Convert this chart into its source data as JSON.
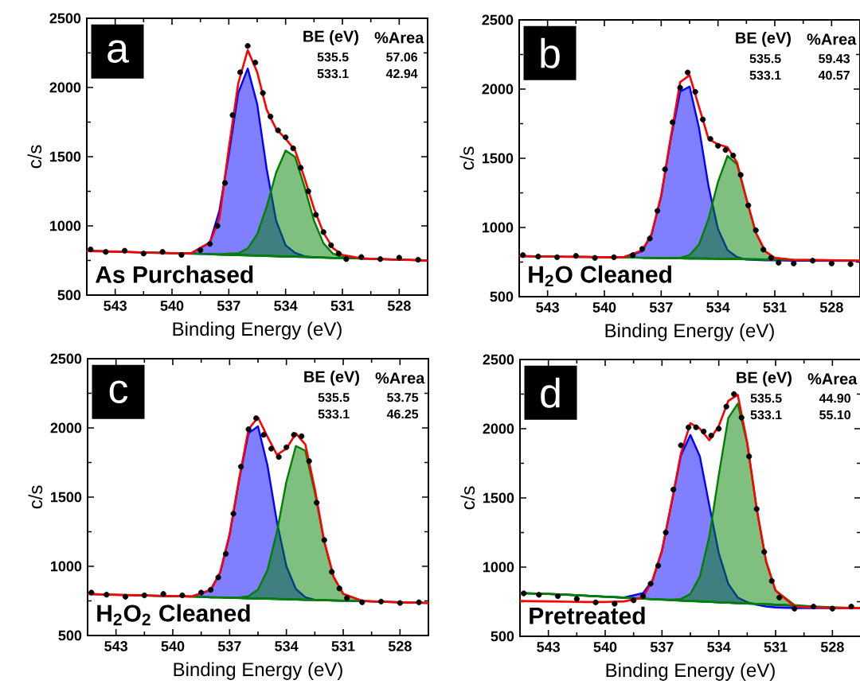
{
  "chart_data": [
    {
      "type": "line",
      "xlabel": "Binding Energy (eV)",
      "ylabel": "c/s",
      "xlim": [
        544.5,
        526.5
      ],
      "xticks": [
        543,
        540,
        537,
        534,
        531,
        528
      ],
      "ylim": [
        500,
        2500
      ],
      "yticks": [
        500,
        1000,
        1500,
        2000,
        2500
      ],
      "x": [
        544.5,
        543,
        542,
        541,
        540,
        539,
        538,
        537.5,
        537,
        536.5,
        536,
        535.5,
        535,
        534.5,
        534,
        533.5,
        533,
        532.5,
        532,
        531.5,
        531,
        530,
        529,
        528,
        527,
        526.5
      ],
      "annotations": [
        "a",
        "BE (eV)",
        "%Area",
        "535.5",
        "57.06",
        "533.1",
        "42.94",
        "As Purchased"
      ],
      "series": [
        {
          "type": "area",
          "color": "#0000ff",
          "values": [
            820,
            814,
            810,
            806,
            803,
            802,
            880,
            1108,
            1514,
            1962,
            2137,
            1880,
            1412,
            1037,
            860,
            805,
            781,
            773,
            771,
            769,
            768,
            764,
            760,
            756,
            752,
            750
          ]
        },
        {
          "type": "area",
          "color": "#008000",
          "values": [
            820,
            814,
            810,
            806,
            803,
            799,
            795,
            794,
            800,
            801,
            837,
            940,
            1138,
            1385,
            1544,
            1498,
            1282,
            1037,
            874,
            799,
            776,
            764,
            760,
            756,
            752,
            750
          ]
        },
        {
          "type": "scatter",
          "color": "#000000",
          "marker": "circle",
          "x": [
            544.3,
            543.5,
            542.5,
            541.5,
            540.5,
            539.5,
            538.5,
            538.0,
            537.6,
            537.2,
            536.8,
            536.4,
            536.0,
            535.6,
            535.2,
            534.8,
            534.4,
            534.0,
            533.6,
            533.2,
            532.8,
            532.4,
            532.0,
            531.6,
            531.2,
            530.8,
            530.0,
            529.0,
            528.0,
            527.0
          ],
          "values": [
            830,
            812,
            820,
            800,
            812,
            790,
            825,
            870,
            1000,
            1310,
            1800,
            2110,
            2300,
            2180,
            1960,
            1790,
            1690,
            1640,
            1560,
            1420,
            1250,
            1080,
            955,
            860,
            800,
            760,
            775,
            760,
            770,
            755
          ]
        },
        {
          "color": "#008000",
          "values": [
            null,
            null,
            null,
            null,
            null,
            null,
            795,
            793,
            791,
            789,
            787,
            785,
            783,
            781,
            779,
            777,
            776,
            773,
            771,
            769,
            768,
            null,
            null,
            null,
            null,
            null
          ]
        },
        {
          "color": "#ff0000",
          "values": [
            818,
            814,
            810,
            806,
            803,
            801,
            880,
            1050,
            1560,
            2030,
            2270,
            2110,
            1840,
            1700,
            1630,
            1545,
            1345,
            1125,
            950,
            840,
            790,
            765,
            760,
            756,
            752,
            749
          ]
        }
      ]
    },
    {
      "type": "line",
      "xlabel": "Binding Energy (eV)",
      "ylabel": "c/s",
      "xlim": [
        544.5,
        526.5
      ],
      "xticks": [
        543,
        540,
        537,
        534,
        531,
        528
      ],
      "ylim": [
        500,
        2500
      ],
      "yticks": [
        500,
        1000,
        1500,
        2000,
        2500
      ],
      "x": [
        544.5,
        543,
        542,
        541,
        540,
        539,
        538,
        537.5,
        537,
        536.5,
        536,
        535.5,
        535,
        534.5,
        534,
        533.5,
        533,
        532.5,
        532,
        531.5,
        531,
        530,
        529,
        528,
        527,
        526.5
      ],
      "annotations": [
        "b",
        "BE (eV)",
        "%Area",
        "535.5",
        "59.43",
        "533.1",
        "40.57",
        "H$_{2}$O Cleaned"
      ],
      "series": [
        {
          "type": "area",
          "color": "#0000ff",
          "values": [
            793,
            790,
            788,
            787,
            785,
            785,
            829,
            952,
            1227,
            1636,
            1981,
            2018,
            1717,
            1298,
            988,
            837,
            786,
            768,
            765,
            763,
            762,
            760,
            760,
            759,
            758,
            757
          ]
        },
        {
          "type": "area",
          "color": "#008000",
          "values": [
            793,
            790,
            788,
            787,
            785,
            783,
            781,
            780,
            780,
            780,
            781,
            801,
            878,
            1062,
            1330,
            1517,
            1458,
            1207,
            961,
            827,
            780,
            766,
            765,
            763,
            761,
            760
          ]
        },
        {
          "type": "scatter",
          "color": "#000000",
          "marker": "circle",
          "x": [
            544.3,
            543.5,
            542.5,
            541.5,
            540.5,
            539.5,
            538.5,
            538.0,
            537.6,
            537.2,
            536.8,
            536.4,
            536.0,
            535.6,
            535.2,
            534.8,
            534.4,
            534.0,
            533.6,
            533.2,
            532.8,
            532.4,
            532.0,
            531.6,
            531.2,
            530.8,
            530.0,
            529.0,
            528.0,
            527.0
          ],
          "values": [
            800,
            790,
            785,
            795,
            780,
            785,
            800,
            845,
            920,
            1120,
            1420,
            1760,
            2010,
            2120,
            1980,
            1780,
            1640,
            1590,
            1560,
            1520,
            1380,
            1160,
            980,
            840,
            780,
            745,
            740,
            760,
            740,
            735
          ]
        },
        {
          "color": "#008000",
          "values": [
            null,
            null,
            null,
            null,
            null,
            null,
            781,
            780,
            779,
            778,
            777,
            776,
            776,
            775,
            774,
            773,
            772,
            771,
            770,
            769,
            768,
            null,
            null,
            null,
            null,
            null
          ]
        },
        {
          "color": "#ff0000",
          "values": [
            793,
            790,
            788,
            787,
            785,
            785,
            835,
            955,
            1230,
            1645,
            2050,
            2100,
            1870,
            1640,
            1600,
            1580,
            1470,
            1207,
            961,
            827,
            780,
            766,
            765,
            763,
            761,
            760
          ]
        }
      ]
    },
    {
      "type": "line",
      "xlabel": "Binding Energy (eV)",
      "ylabel": "c/s",
      "xlim": [
        544.5,
        526.5
      ],
      "xticks": [
        543,
        540,
        537,
        534,
        531,
        528
      ],
      "ylim": [
        500,
        2500
      ],
      "yticks": [
        500,
        1000,
        1500,
        2000,
        2500
      ],
      "x": [
        544.5,
        543,
        542,
        541,
        540,
        539,
        538,
        537.5,
        537,
        536.5,
        536,
        535.5,
        535,
        534.5,
        534,
        533.5,
        533,
        532.5,
        532,
        531.5,
        531,
        530,
        529,
        528,
        527,
        526.5
      ],
      "annotations": [
        "c",
        "BE (eV)",
        "%Area",
        "535.5",
        "53.75",
        "533.1",
        "46.25",
        "H$_{2}$O$_{2}$ Cleaned"
      ],
      "series": [
        {
          "type": "area",
          "color": "#0000ff",
          "values": [
            800,
            794,
            791,
            787,
            784,
            782,
            828,
            954,
            1226,
            1623,
            1962,
            2011,
            1730,
            1321,
            1000,
            836,
            776,
            757,
            755,
            753,
            751,
            748,
            744,
            740,
            737,
            735
          ]
        },
        {
          "type": "area",
          "color": "#008000",
          "values": [
            800,
            794,
            791,
            787,
            784,
            780,
            776,
            775,
            773,
            774,
            784,
            832,
            972,
            1249,
            1612,
            1869,
            1835,
            1535,
            1173,
            920,
            801,
            750,
            744,
            740,
            737,
            735
          ]
        },
        {
          "type": "scatter",
          "color": "#000000",
          "marker": "circle",
          "x": [
            544.3,
            543.5,
            542.5,
            541.5,
            540.5,
            539.5,
            538.5,
            538.0,
            537.6,
            537.2,
            536.8,
            536.4,
            536.0,
            535.6,
            535.2,
            534.8,
            534.4,
            534.0,
            533.6,
            533.2,
            532.8,
            532.4,
            532.0,
            531.6,
            531.2,
            530.8,
            530.0,
            529.0,
            528.0,
            527.0
          ],
          "values": [
            810,
            795,
            780,
            790,
            800,
            790,
            810,
            830,
            920,
            1090,
            1380,
            1720,
            1990,
            2070,
            1950,
            1850,
            1790,
            1860,
            1950,
            1940,
            1760,
            1460,
            1190,
            960,
            840,
            770,
            740,
            745,
            735,
            740
          ]
        },
        {
          "color": "#008000",
          "values": [
            null,
            null,
            null,
            null,
            null,
            null,
            776,
            775,
            773,
            771,
            769,
            767,
            766,
            764,
            762,
            760,
            758,
            757,
            755,
            753,
            751,
            null,
            null,
            null,
            null,
            null
          ]
        },
        {
          "color": "#ff0000",
          "values": [
            800,
            794,
            791,
            787,
            784,
            782,
            830,
            955,
            1230,
            1626,
            1990,
            2076,
            1936,
            1806,
            1850,
            1960,
            1880,
            1560,
            1180,
            922,
            801,
            750,
            744,
            740,
            737,
            735
          ]
        }
      ]
    },
    {
      "type": "line",
      "xlabel": "Binding Energy (eV)",
      "ylabel": "c/s",
      "xlim": [
        544.5,
        526.5
      ],
      "xticks": [
        543,
        540,
        537,
        534,
        531,
        528
      ],
      "ylim": [
        500,
        2500
      ],
      "yticks": [
        500,
        1000,
        1500,
        2000,
        2500
      ],
      "x": [
        544.5,
        543,
        542,
        541,
        540,
        539,
        538,
        537.5,
        537,
        536.5,
        536,
        535.5,
        535,
        534.5,
        534,
        533.5,
        533,
        532.5,
        532,
        531.5,
        531,
        530,
        529,
        528,
        527,
        526.5
      ],
      "annotations": [
        "d",
        "BE (eV)",
        "%Area",
        "535.5",
        "44.90",
        "533.1",
        "55.10",
        "Pretreated"
      ],
      "series": [
        {
          "type": "area",
          "color": "#0000ff",
          "values": [
            812,
            806,
            800,
            793,
            786,
            780,
            812,
            905,
            1119,
            1459,
            1806,
            1955,
            1800,
            1446,
            1100,
            880,
            780,
            746,
            728,
            715,
            708,
            704,
            703,
            703,
            703,
            703
          ]
        },
        {
          "type": "area",
          "color": "#008000",
          "values": [
            812,
            806,
            800,
            793,
            786,
            779,
            772,
            768,
            765,
            764,
            769,
            806,
            932,
            1220,
            1665,
            2077,
            2181,
            1895,
            1426,
            1039,
            830,
            726,
            716,
            710,
            706,
            703
          ]
        },
        {
          "type": "scatter",
          "color": "#000000",
          "marker": "circle",
          "x": [
            544.3,
            543.5,
            542.5,
            541.5,
            540.5,
            539.5,
            538.5,
            538.0,
            537.6,
            537.2,
            536.8,
            536.4,
            536.0,
            535.6,
            535.2,
            534.8,
            534.4,
            534.0,
            533.6,
            533.2,
            532.8,
            532.4,
            532.0,
            531.6,
            531.2,
            530.8,
            530.0,
            529.0,
            528.0,
            527.0
          ],
          "values": [
            810,
            800,
            790,
            770,
            745,
            735,
            760,
            790,
            880,
            1010,
            1250,
            1560,
            1880,
            2010,
            2010,
            1980,
            1950,
            2000,
            2160,
            2250,
            2080,
            1800,
            1420,
            1110,
            900,
            780,
            700,
            715,
            700,
            715
          ]
        },
        {
          "color": "#008000",
          "values": [
            812,
            806,
            800,
            793,
            786,
            779,
            772,
            768,
            765,
            762,
            758,
            755,
            752,
            749,
            746,
            743,
            740,
            737,
            734,
            731,
            728,
            722,
            null,
            null,
            null,
            null
          ]
        },
        {
          "color": "#ff0000",
          "values": [
            755,
            752,
            750,
            748,
            748,
            752,
            782,
            905,
            1120,
            1460,
            1820,
            2040,
            2000,
            1917,
            2020,
            2200,
            2245,
            1900,
            1420,
            1040,
            830,
            715,
            708,
            705,
            703,
            703
          ]
        }
      ]
    }
  ]
}
